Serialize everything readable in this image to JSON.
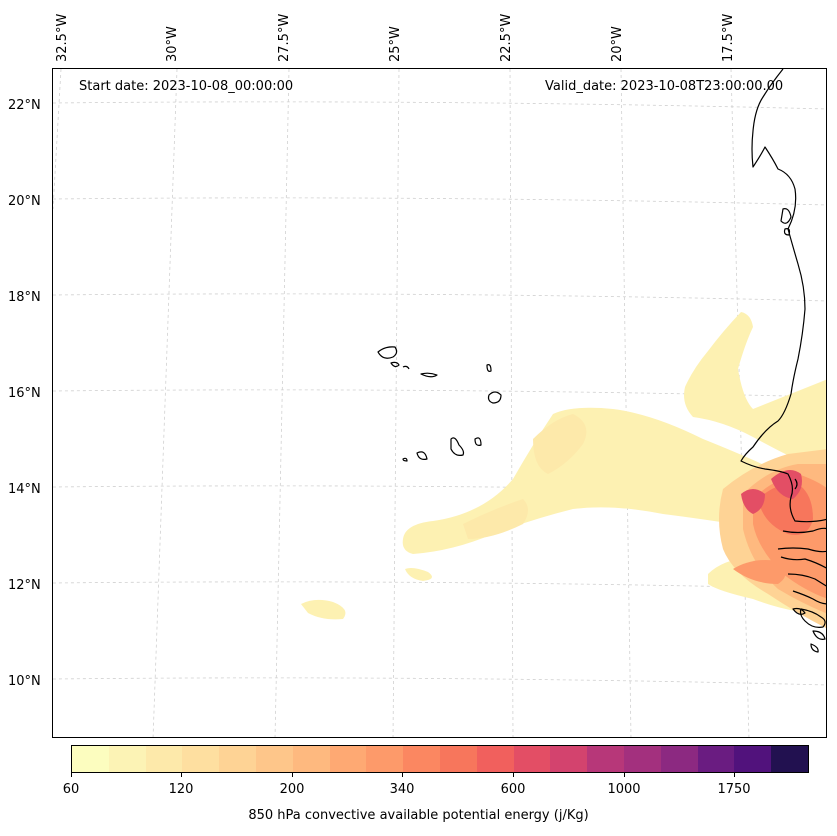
{
  "header": {
    "start_date": "Start date: 2023-10-08_00:00:00",
    "valid_date": "Valid_date: 2023-10-08T23:00:00.00"
  },
  "map": {
    "latitude_labels": [
      "22°N",
      "20°N",
      "18°N",
      "16°N",
      "14°N",
      "12°N",
      "10°N"
    ],
    "longitude_labels": [
      "32.5°W",
      "30°W",
      "27.5°W",
      "25°W",
      "22.5°W",
      "20°W",
      "17.5°W"
    ],
    "gridlines": "dashed-light-gray",
    "field": "850 hPa convective available potential energy"
  },
  "colorbar": {
    "label": "850 hPa convective available potential energy (j/Kg)",
    "tick_labels": [
      "60",
      "120",
      "200",
      "340",
      "600",
      "1000",
      "1750"
    ],
    "colors": [
      "#fcfdbf",
      "#fcf3b5",
      "#fde9aa",
      "#fedfa0",
      "#fed395",
      "#fec68a",
      "#feb97f",
      "#fea973",
      "#fd9a6a",
      "#fb8761",
      "#f7765c",
      "#f1605d",
      "#e34e65",
      "#d3436e",
      "#b73779",
      "#a3307e",
      "#8c2981",
      "#6a1c81",
      "#51127c",
      "#221150"
    ]
  }
}
